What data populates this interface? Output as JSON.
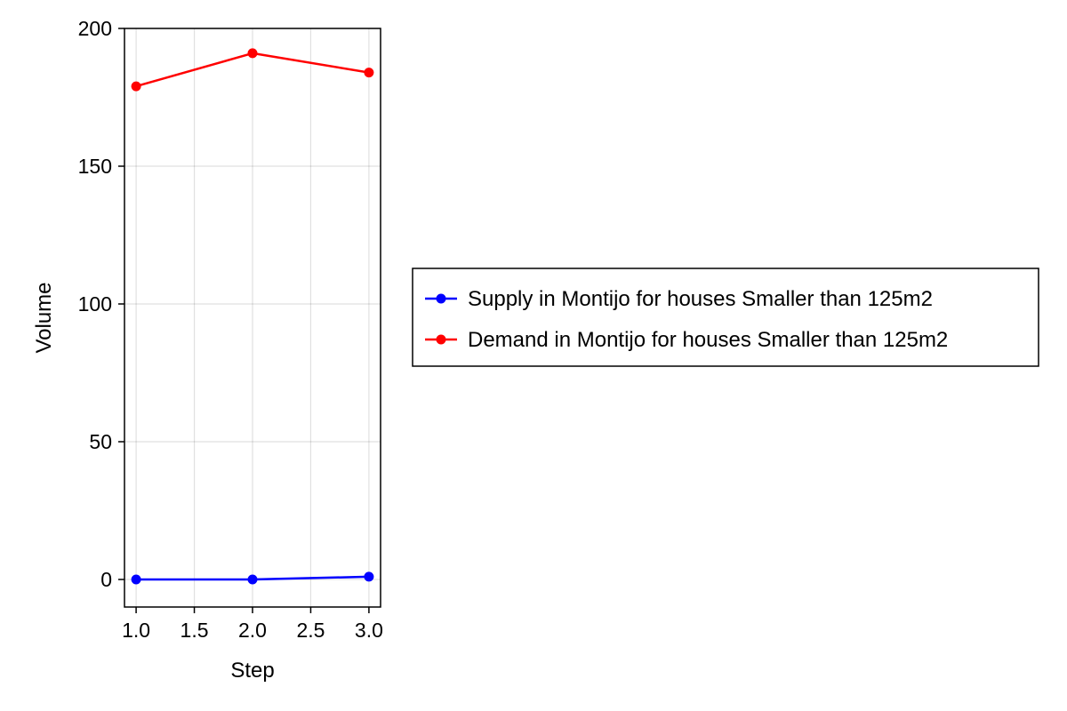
{
  "chart_data": {
    "type": "line",
    "xlabel": "Step",
    "ylabel": "Volume",
    "xlim": [
      0.9,
      3.1
    ],
    "ylim": [
      -10,
      200
    ],
    "xticks": [
      "1.0",
      "1.5",
      "2.0",
      "2.5",
      "3.0"
    ],
    "xtick_values": [
      1.0,
      1.5,
      2.0,
      2.5,
      3.0
    ],
    "yticks": [
      "0",
      "50",
      "100",
      "150",
      "200"
    ],
    "ytick_values": [
      0,
      50,
      100,
      150,
      200
    ],
    "grid": true,
    "legend_position": "right",
    "series": [
      {
        "name": "Supply in Montijo for houses Smaller than 125m2",
        "color": "#0000ff",
        "x": [
          1.0,
          2.0,
          3.0
        ],
        "y": [
          0,
          0,
          1
        ]
      },
      {
        "name": "Demand in Montijo for houses Smaller than 125m2",
        "color": "#ff0000",
        "x": [
          1.0,
          2.0,
          3.0
        ],
        "y": [
          179,
          191,
          184
        ]
      }
    ]
  }
}
